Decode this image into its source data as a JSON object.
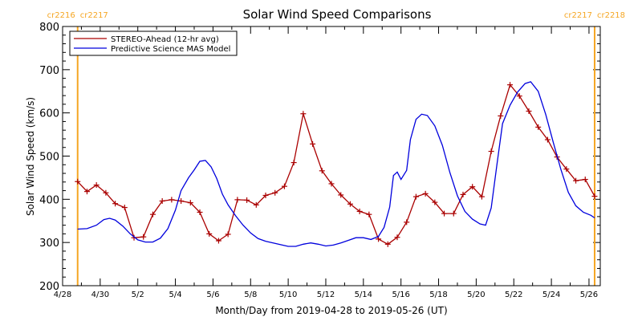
{
  "chart_data": {
    "type": "line",
    "title": "Solar Wind Speed Comparisons",
    "xlabel": "Month/Day from 2019-04-28 to 2019-05-26 (UT)",
    "ylabel": "Solar Wind Speed (km/s)",
    "xlim_days": [
      0,
      28.6
    ],
    "ylim": [
      200,
      800
    ],
    "x_ticks": [
      {
        "day": 0,
        "label": "4/28"
      },
      {
        "day": 2,
        "label": "4/30"
      },
      {
        "day": 4,
        "label": "5/2"
      },
      {
        "day": 6,
        "label": "5/4"
      },
      {
        "day": 8,
        "label": "5/6"
      },
      {
        "day": 10,
        "label": "5/8"
      },
      {
        "day": 12,
        "label": "5/10"
      },
      {
        "day": 14,
        "label": "5/12"
      },
      {
        "day": 16,
        "label": "5/14"
      },
      {
        "day": 18,
        "label": "5/16"
      },
      {
        "day": 20,
        "label": "5/18"
      },
      {
        "day": 22,
        "label": "5/20"
      },
      {
        "day": 24,
        "label": "5/22"
      },
      {
        "day": 26,
        "label": "5/24"
      },
      {
        "day": 28,
        "label": "5/26"
      }
    ],
    "y_ticks": [
      200,
      300,
      400,
      500,
      600,
      700,
      800
    ],
    "rotation_markers": [
      {
        "day": 0.8,
        "label_left": "cr2216",
        "label_right": "cr2217",
        "side": "left"
      },
      {
        "day": 28.3,
        "label_left": "cr2217",
        "label_right": "cr2218",
        "side": "right"
      }
    ],
    "legend_position": "top-left",
    "series": [
      {
        "name": "STEREO-Ahead (12-hr avg)",
        "color": "#aa0000",
        "markers": "plus",
        "points": [
          [
            0.8,
            441
          ],
          [
            1.3,
            418
          ],
          [
            1.8,
            433
          ],
          [
            2.3,
            415
          ],
          [
            2.8,
            390
          ],
          [
            3.3,
            381
          ],
          [
            3.8,
            311
          ],
          [
            4.3,
            313
          ],
          [
            4.8,
            365
          ],
          [
            5.3,
            396
          ],
          [
            5.8,
            399
          ],
          [
            6.3,
            396
          ],
          [
            6.8,
            392
          ],
          [
            7.3,
            370
          ],
          [
            7.8,
            320
          ],
          [
            8.3,
            304
          ],
          [
            8.8,
            319
          ],
          [
            9.3,
            399
          ],
          [
            9.8,
            398
          ],
          [
            10.3,
            387
          ],
          [
            10.8,
            409
          ],
          [
            11.3,
            415
          ],
          [
            11.8,
            430
          ],
          [
            12.3,
            485
          ],
          [
            12.8,
            598
          ],
          [
            13.3,
            528
          ],
          [
            13.8,
            466
          ],
          [
            14.3,
            436
          ],
          [
            14.8,
            410
          ],
          [
            15.3,
            389
          ],
          [
            15.8,
            372
          ],
          [
            16.3,
            365
          ],
          [
            16.8,
            308
          ],
          [
            17.3,
            296
          ],
          [
            17.8,
            312
          ],
          [
            18.3,
            347
          ],
          [
            18.8,
            406
          ],
          [
            19.3,
            413
          ],
          [
            19.8,
            393
          ],
          [
            20.3,
            367
          ],
          [
            20.8,
            367
          ],
          [
            21.3,
            411
          ],
          [
            21.8,
            429
          ],
          [
            22.3,
            406
          ],
          [
            22.8,
            511
          ],
          [
            23.3,
            593
          ],
          [
            23.8,
            665
          ],
          [
            24.3,
            639
          ],
          [
            24.8,
            604
          ],
          [
            25.3,
            567
          ],
          [
            25.8,
            538
          ],
          [
            26.3,
            498
          ],
          [
            26.8,
            470
          ],
          [
            27.3,
            443
          ],
          [
            27.8,
            446
          ],
          [
            28.3,
            407
          ]
        ]
      },
      {
        "name": "Predictive Science MAS Model",
        "color": "#0000dd",
        "markers": "none",
        "points": [
          [
            0.8,
            331
          ],
          [
            1.3,
            332
          ],
          [
            1.8,
            340
          ],
          [
            2.2,
            353
          ],
          [
            2.5,
            356
          ],
          [
            2.8,
            352
          ],
          [
            3.2,
            338
          ],
          [
            3.6,
            320
          ],
          [
            4.0,
            306
          ],
          [
            4.4,
            301
          ],
          [
            4.8,
            301
          ],
          [
            5.2,
            310
          ],
          [
            5.6,
            332
          ],
          [
            6.0,
            375
          ],
          [
            6.3,
            420
          ],
          [
            6.7,
            450
          ],
          [
            7.0,
            468
          ],
          [
            7.3,
            488
          ],
          [
            7.6,
            490
          ],
          [
            7.9,
            475
          ],
          [
            8.2,
            448
          ],
          [
            8.5,
            412
          ],
          [
            8.8,
            387
          ],
          [
            9.2,
            362
          ],
          [
            9.6,
            340
          ],
          [
            10.0,
            322
          ],
          [
            10.4,
            309
          ],
          [
            10.8,
            303
          ],
          [
            11.2,
            299
          ],
          [
            11.6,
            295
          ],
          [
            12.0,
            291
          ],
          [
            12.4,
            291
          ],
          [
            12.8,
            296
          ],
          [
            13.2,
            299
          ],
          [
            13.6,
            296
          ],
          [
            14.0,
            292
          ],
          [
            14.4,
            294
          ],
          [
            14.8,
            299
          ],
          [
            15.2,
            305
          ],
          [
            15.6,
            311
          ],
          [
            16.0,
            311
          ],
          [
            16.4,
            307
          ],
          [
            16.8,
            314
          ],
          [
            17.1,
            335
          ],
          [
            17.4,
            382
          ],
          [
            17.6,
            455
          ],
          [
            17.8,
            463
          ],
          [
            18.0,
            446
          ],
          [
            18.3,
            467
          ],
          [
            18.5,
            538
          ],
          [
            18.8,
            585
          ],
          [
            19.1,
            597
          ],
          [
            19.4,
            594
          ],
          [
            19.8,
            570
          ],
          [
            20.2,
            525
          ],
          [
            20.6,
            462
          ],
          [
            21.0,
            408
          ],
          [
            21.4,
            372
          ],
          [
            21.8,
            354
          ],
          [
            22.2,
            343
          ],
          [
            22.5,
            340
          ],
          [
            22.8,
            380
          ],
          [
            23.1,
            480
          ],
          [
            23.4,
            575
          ],
          [
            23.8,
            618
          ],
          [
            24.2,
            648
          ],
          [
            24.6,
            668
          ],
          [
            24.9,
            672
          ],
          [
            25.3,
            650
          ],
          [
            25.7,
            596
          ],
          [
            26.1,
            532
          ],
          [
            26.5,
            470
          ],
          [
            26.9,
            416
          ],
          [
            27.3,
            385
          ],
          [
            27.7,
            370
          ],
          [
            28.1,
            363
          ],
          [
            28.3,
            357
          ]
        ]
      }
    ]
  }
}
